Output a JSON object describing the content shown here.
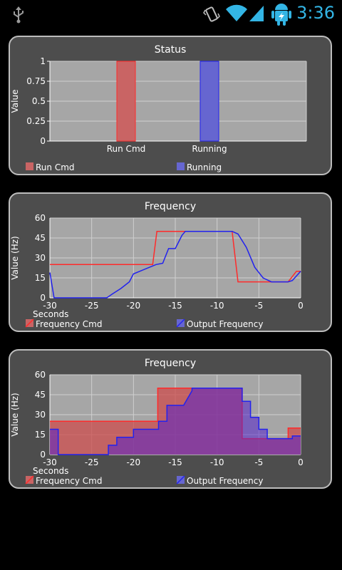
{
  "status_bar": {
    "time": "3:36",
    "icons": [
      "usb-icon",
      "vibrate-icon",
      "wifi-icon",
      "signal-icon",
      "android-charging-icon"
    ],
    "accent_color": "#33b5e5"
  },
  "colors": {
    "red": "#ff2a2a",
    "blue": "#2222ee",
    "red_fill": "#c96464",
    "blue_fill": "#6666d0",
    "purple_fill": "#7a3aa8",
    "plot_bg": "#a6a6a6",
    "panel_bg": "#4d4d4d"
  },
  "panels": [
    {
      "chart_data": {
        "type": "bar",
        "title": "Status",
        "ylabel": "Value",
        "xlabel": "",
        "categories": [
          "Run Cmd",
          "Running"
        ],
        "values": [
          1,
          1
        ],
        "ylim": [
          0,
          1
        ],
        "yticks": [
          "0",
          "0.25",
          "0.5",
          "0.75",
          "1"
        ],
        "grid": true,
        "legend": [
          "Run Cmd",
          "Running"
        ],
        "legend_position": "bottom"
      }
    },
    {
      "chart_data": {
        "type": "line",
        "title": "Frequency",
        "ylabel": "Value (Hz)",
        "xlabel": "Seconds",
        "xlim": [
          -30,
          0
        ],
        "ylim": [
          0,
          60
        ],
        "xticks": [
          "-30",
          "-25",
          "-20",
          "-15",
          "-10",
          "-5",
          "0"
        ],
        "yticks": [
          "0",
          "15",
          "30",
          "45",
          "60"
        ],
        "grid": true,
        "legend_position": "bottom",
        "series": [
          {
            "name": "Frequency Cmd",
            "x": [
              -30,
              -17.7,
              -17.2,
              -14,
              -8.2,
              -7.5,
              -4,
              -1.5,
              -0.5,
              0
            ],
            "y": [
              25,
              25,
              50,
              50,
              50,
              12,
              12,
              12,
              20,
              20
            ]
          },
          {
            "name": "Output Frequency",
            "x": [
              -30,
              -29.5,
              -23.2,
              -22.5,
              -21.5,
              -20.5,
              -20,
              -17.3,
              -16.5,
              -15.8,
              -15,
              -14.2,
              -13.8,
              -8.2,
              -7.5,
              -6.5,
              -5.5,
              -4.5,
              -3.5,
              -2,
              -1.5,
              -1,
              0
            ],
            "y": [
              19,
              0,
              0,
              3,
              7,
              12,
              18,
              25,
              26,
              37,
              37,
              47,
              50,
              50,
              48,
              38,
              23,
              15,
              12,
              12,
              12,
              13,
              20
            ]
          }
        ]
      }
    },
    {
      "chart_data": {
        "type": "area",
        "title": "Frequency",
        "ylabel": "Value (Hz)",
        "xlabel": "Seconds",
        "xlim": [
          -30,
          0
        ],
        "ylim": [
          0,
          60
        ],
        "xticks": [
          "-30",
          "-25",
          "-20",
          "-15",
          "-10",
          "-5",
          "0"
        ],
        "yticks": [
          "0",
          "15",
          "30",
          "45",
          "60"
        ],
        "grid": true,
        "legend_position": "bottom",
        "series": [
          {
            "name": "Frequency Cmd",
            "x": [
              -30,
              -17.1,
              -17.1,
              -14,
              -14,
              -7,
              -7,
              -1.5,
              -1.5,
              -0.2,
              -0.2,
              0
            ],
            "y": [
              25,
              25,
              50,
              50,
              50,
              50,
              12,
              12,
              20,
              20,
              20,
              20
            ]
          },
          {
            "name": "Output Frequency",
            "x": [
              -30,
              -29,
              -29,
              -23,
              -23,
              -22,
              -22,
              -20,
              -20,
              -17,
              -17,
              -16,
              -16,
              -14,
              -14,
              -13,
              -13,
              -7,
              -7,
              -6,
              -6,
              -5,
              -5,
              -4,
              -4,
              -1,
              -1,
              0
            ],
            "y": [
              19,
              19,
              0,
              0,
              7,
              7,
              13,
              13,
              19,
              19,
              25,
              25,
              37,
              37,
              37,
              48,
              50,
              50,
              40,
              40,
              28,
              28,
              19,
              19,
              12,
              12,
              14,
              14
            ]
          }
        ]
      }
    }
  ]
}
